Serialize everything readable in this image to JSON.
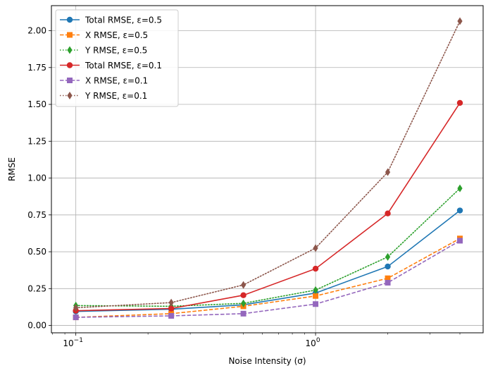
{
  "chart_data": {
    "type": "line",
    "title": "",
    "xlabel": "Noise Intensity (σ)",
    "ylabel": "RMSE",
    "xscale": "log",
    "xlim": [
      0.0791,
      5.0
    ],
    "ylim": [
      -0.05,
      2.17
    ],
    "grid": true,
    "legend_position": "top-left",
    "x": [
      0.1,
      0.25,
      0.5,
      1.0,
      2.0,
      4.0
    ],
    "x_ticks": [
      {
        "value": 0.1,
        "base": "10",
        "exp": "−1"
      },
      {
        "value": 1.0,
        "base": "10",
        "exp": "0"
      }
    ],
    "y_ticks": [
      {
        "value": 0.0,
        "label": "0.00"
      },
      {
        "value": 0.25,
        "label": "0.25"
      },
      {
        "value": 0.5,
        "label": "0.50"
      },
      {
        "value": 0.75,
        "label": "0.75"
      },
      {
        "value": 1.0,
        "label": "1.00"
      },
      {
        "value": 1.25,
        "label": "1.25"
      },
      {
        "value": 1.5,
        "label": "1.50"
      },
      {
        "value": 1.75,
        "label": "1.75"
      },
      {
        "value": 2.0,
        "label": "2.00"
      }
    ],
    "series": [
      {
        "name": "Total RMSE, ε=0.5",
        "color": "#1f77b4",
        "linestyle": "solid",
        "marker": "circle",
        "values": [
          0.095,
          0.11,
          0.14,
          0.22,
          0.4,
          0.78
        ]
      },
      {
        "name": "X RMSE, ε=0.5",
        "color": "#ff7f0e",
        "linestyle": "dashed",
        "marker": "square",
        "values": [
          0.055,
          0.08,
          0.13,
          0.2,
          0.32,
          0.59
        ]
      },
      {
        "name": "Y RMSE, ε=0.5",
        "color": "#2ca02c",
        "linestyle": "dotted",
        "marker": "diamond",
        "values": [
          0.135,
          0.13,
          0.15,
          0.24,
          0.465,
          0.93
        ]
      },
      {
        "name": "Total RMSE, ε=0.1",
        "color": "#d62728",
        "linestyle": "solid",
        "marker": "circle",
        "values": [
          0.1,
          0.115,
          0.205,
          0.385,
          0.76,
          1.51
        ]
      },
      {
        "name": "X RMSE, ε=0.1",
        "color": "#9467bd",
        "linestyle": "dashed",
        "marker": "square",
        "values": [
          0.055,
          0.065,
          0.08,
          0.145,
          0.29,
          0.575
        ]
      },
      {
        "name": "Y RMSE, ε=0.1",
        "color": "#8c564b",
        "linestyle": "dotted",
        "marker": "diamond",
        "values": [
          0.12,
          0.155,
          0.275,
          0.525,
          1.04,
          2.065
        ]
      }
    ]
  }
}
